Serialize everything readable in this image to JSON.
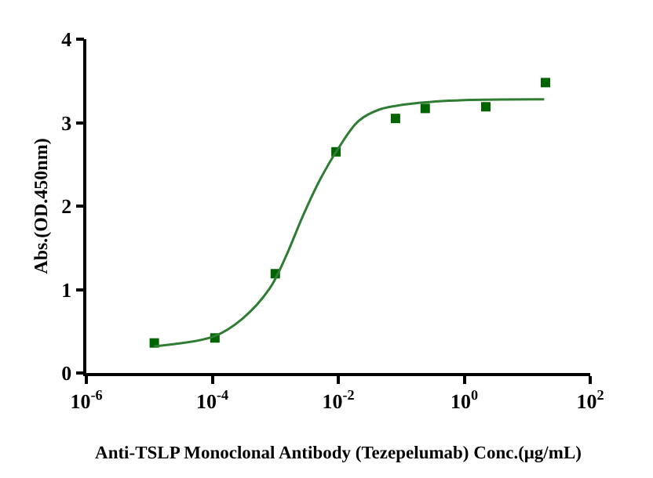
{
  "chart_data": {
    "type": "scatter",
    "xlabel": "Anti-TSLP Monoclonal Antibody (Tezepelumab) Conc.(μg/mL)",
    "ylabel": "Abs.(OD.450nm)",
    "log": "x",
    "grid": false,
    "xlim": [
      1e-06,
      100
    ],
    "xticks": [
      {
        "value": 1e-06,
        "label": "10$^{-6}$"
      },
      {
        "value": 0.0001,
        "label": "10$^{-4}$"
      },
      {
        "value": 0.01,
        "label": "10$^{-2}$"
      },
      {
        "value": 1,
        "label": "10$^{0}$"
      },
      {
        "value": 100,
        "label": "10$^{2}$"
      }
    ],
    "ylim": [
      0,
      4
    ],
    "yticks": [
      0,
      1,
      2,
      3,
      4
    ],
    "series": [
      {
        "marker": "square",
        "color": "#006400",
        "x": [
          1.2e-05,
          0.00011,
          0.001,
          0.0092,
          0.081,
          0.24,
          2.2,
          19.5
        ],
        "values": [
          0.36,
          0.42,
          1.19,
          2.65,
          3.05,
          3.17,
          3.19,
          3.48
        ]
      },
      {
        "type": "line",
        "marker": "none",
        "line_style": "solid",
        "color": "#2e7d32",
        "x": [
          1.2e-05,
          0.000107,
          0.0003,
          0.00081,
          0.0015,
          0.0027,
          0.005,
          0.01,
          0.021,
          0.046,
          0.16,
          1,
          18.6
        ],
        "values": [
          0.32,
          0.44,
          0.65,
          1.01,
          1.41,
          1.87,
          2.3,
          2.69,
          3.02,
          3.16,
          3.23,
          3.27,
          3.28
        ]
      }
    ]
  }
}
